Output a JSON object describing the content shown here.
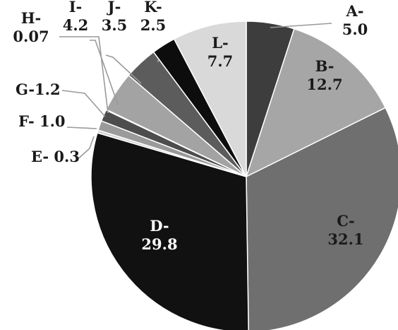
{
  "chart_data": {
    "type": "pie",
    "categories": [
      "A",
      "B",
      "C",
      "D",
      "E",
      "F",
      "G",
      "H",
      "I",
      "J",
      "K",
      "L"
    ],
    "values": [
      5.0,
      12.7,
      32.1,
      29.8,
      0.3,
      1.0,
      1.2,
      0.07,
      4.2,
      3.5,
      2.5,
      7.7
    ],
    "labels": [
      [
        "A-",
        "5.0"
      ],
      [
        "B-",
        "12.7"
      ],
      [
        "C-",
        "32.1"
      ],
      [
        "D-",
        "29.8"
      ],
      [
        "E- 0.3"
      ],
      [
        "F- 1.0"
      ],
      [
        "G-1.2"
      ],
      [
        "H-",
        "0.07"
      ],
      [
        "I-",
        "4.2"
      ],
      [
        "J-",
        "3.5"
      ],
      [
        "K-",
        "2.5"
      ],
      [
        "L-",
        "7.7"
      ]
    ],
    "colors": [
      "#3d3d3d",
      "#a6a6a6",
      "#6f6f6f",
      "#111111",
      "#d2d2d2",
      "#9a9a9a",
      "#4d4d4d",
      "#e3e3e3",
      "#a3a3a3",
      "#5c5c5c",
      "#0d0d0d",
      "#d9d9d9"
    ],
    "label_colors": [
      "#1a1a1a",
      "#1a1a1a",
      "#1a1a1a",
      "#ffffff",
      "#1a1a1a",
      "#1a1a1a",
      "#1a1a1a",
      "#1a1a1a",
      "#1a1a1a",
      "#1a1a1a",
      "#1a1a1a",
      "#1a1a1a"
    ],
    "start_angle_deg": 0,
    "direction": "clockwise",
    "legend": "none"
  }
}
